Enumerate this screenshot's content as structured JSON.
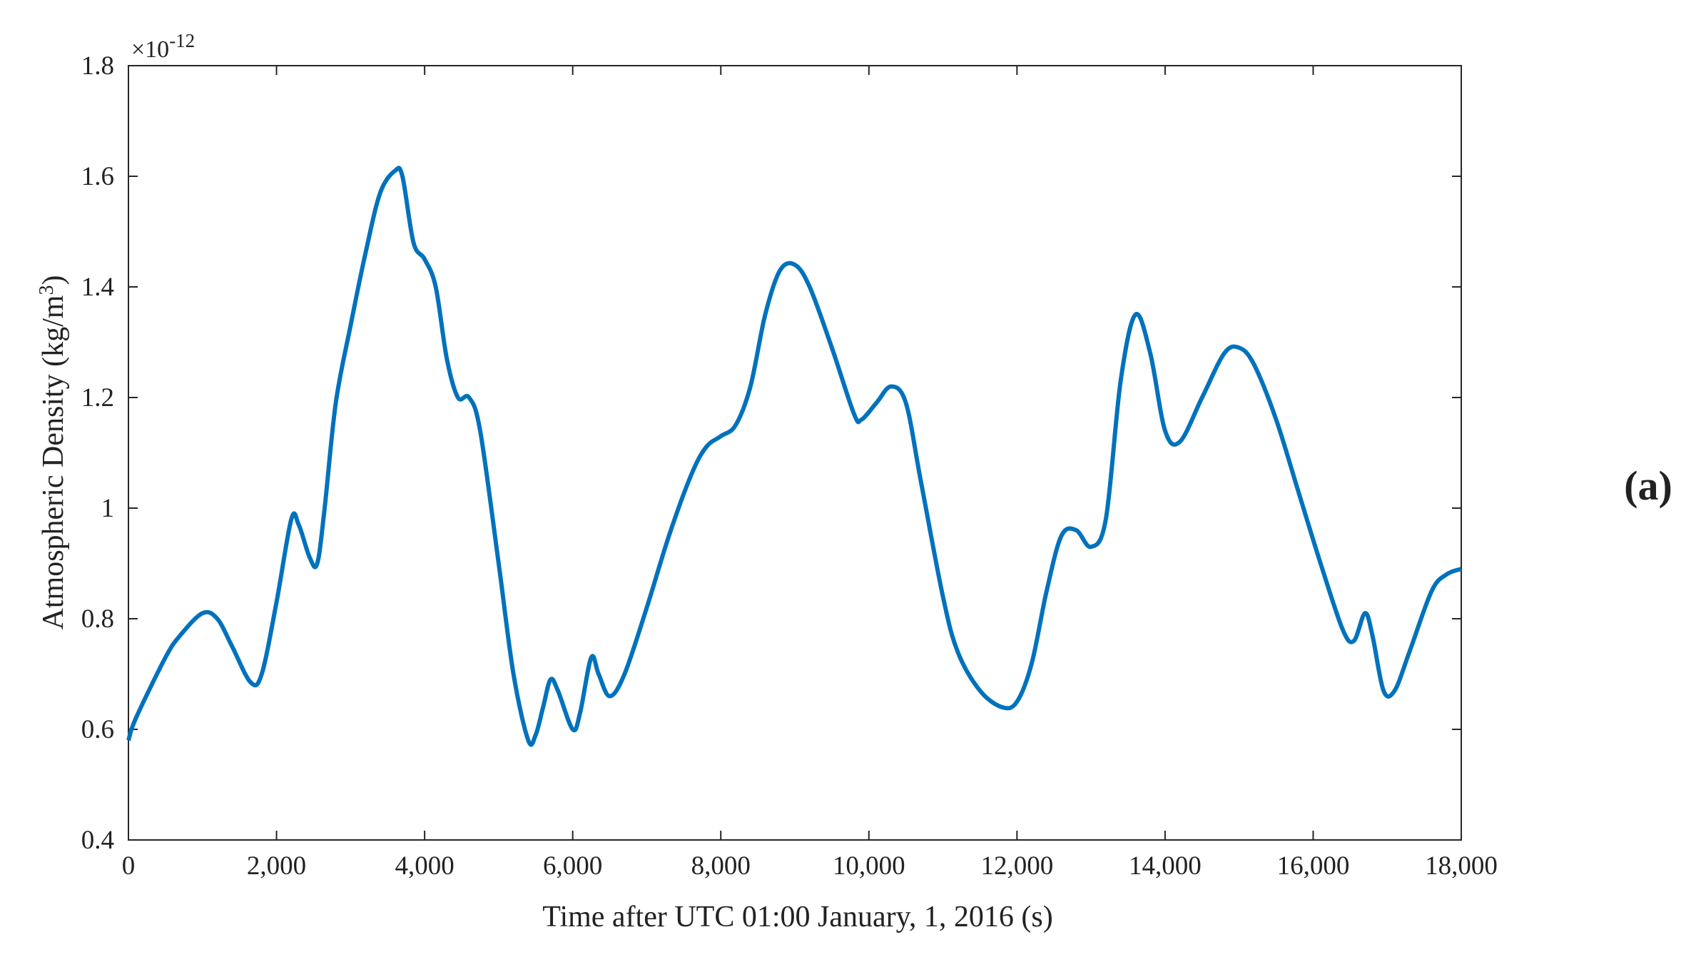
{
  "chart_data": {
    "type": "line",
    "xlabel": "Time after UTC 01:00 January, 1,  2016 (s)",
    "ylabel": "Atmospheric Density (kg/m",
    "ylabel_sup": "3",
    "ylabel_end": ")",
    "y_multiplier": "×10",
    "y_multiplier_exp": "-12",
    "panel_label": "(a)",
    "xlim": [
      0,
      18000
    ],
    "ylim": [
      0.4,
      1.8
    ],
    "xticks": [
      0,
      {
        "value": 2000,
        "label": "2,000"
      },
      {
        "value": 4000,
        "label": "4,000"
      },
      {
        "value": 6000,
        "label": "6,000"
      },
      {
        "value": 8000,
        "label": "8,000"
      },
      {
        "value": 10000,
        "label": "10,000"
      },
      {
        "value": 12000,
        "label": "12,000"
      },
      {
        "value": 14000,
        "label": "14,000"
      },
      {
        "value": 16000,
        "label": "16,000"
      },
      {
        "value": 18000,
        "label": "18,000"
      }
    ],
    "yticks": [
      0.4,
      0.6,
      0.8,
      1,
      1.2,
      1.4,
      1.6,
      1.8
    ],
    "series": [
      {
        "color": "#0072bd",
        "x": [
          0,
          100,
          500,
          700,
          1000,
          1200,
          1400,
          1650,
          1800,
          2000,
          2200,
          2300,
          2450,
          2550,
          2650,
          2800,
          3000,
          3200,
          3400,
          3600,
          3700,
          3850,
          4000,
          4150,
          4300,
          4450,
          4600,
          4750,
          5000,
          5200,
          5400,
          5500,
          5600,
          5700,
          5800,
          6000,
          6100,
          6250,
          6350,
          6500,
          6700,
          7000,
          7300,
          7600,
          7800,
          8000,
          8200,
          8400,
          8600,
          8800,
          9000,
          9200,
          9500,
          9800,
          9900,
          10100,
          10300,
          10500,
          10700,
          11000,
          11200,
          11500,
          11800,
          12000,
          12200,
          12400,
          12600,
          12800,
          13000,
          13200,
          13400,
          13600,
          13800,
          14000,
          14200,
          14500,
          14800,
          15000,
          15200,
          15500,
          15800,
          16100,
          16400,
          16550,
          16700,
          16800,
          16950,
          17100,
          17300,
          17600,
          17800,
          18000
        ],
        "values": [
          0.58,
          0.62,
          0.73,
          0.77,
          0.81,
          0.8,
          0.75,
          0.685,
          0.7,
          0.83,
          0.98,
          0.97,
          0.91,
          0.9,
          1.0,
          1.19,
          1.33,
          1.46,
          1.57,
          1.61,
          1.6,
          1.48,
          1.45,
          1.4,
          1.27,
          1.2,
          1.2,
          1.14,
          0.9,
          0.7,
          0.58,
          0.59,
          0.64,
          0.69,
          0.67,
          0.6,
          0.63,
          0.73,
          0.7,
          0.66,
          0.7,
          0.82,
          0.95,
          1.06,
          1.11,
          1.13,
          1.15,
          1.22,
          1.35,
          1.43,
          1.44,
          1.4,
          1.29,
          1.17,
          1.16,
          1.19,
          1.22,
          1.19,
          1.05,
          0.84,
          0.74,
          0.67,
          0.64,
          0.65,
          0.72,
          0.85,
          0.95,
          0.96,
          0.93,
          0.98,
          1.23,
          1.35,
          1.28,
          1.14,
          1.12,
          1.2,
          1.28,
          1.29,
          1.26,
          1.16,
          1.03,
          0.9,
          0.78,
          0.76,
          0.81,
          0.77,
          0.67,
          0.67,
          0.74,
          0.85,
          0.88,
          0.89
        ]
      }
    ]
  }
}
